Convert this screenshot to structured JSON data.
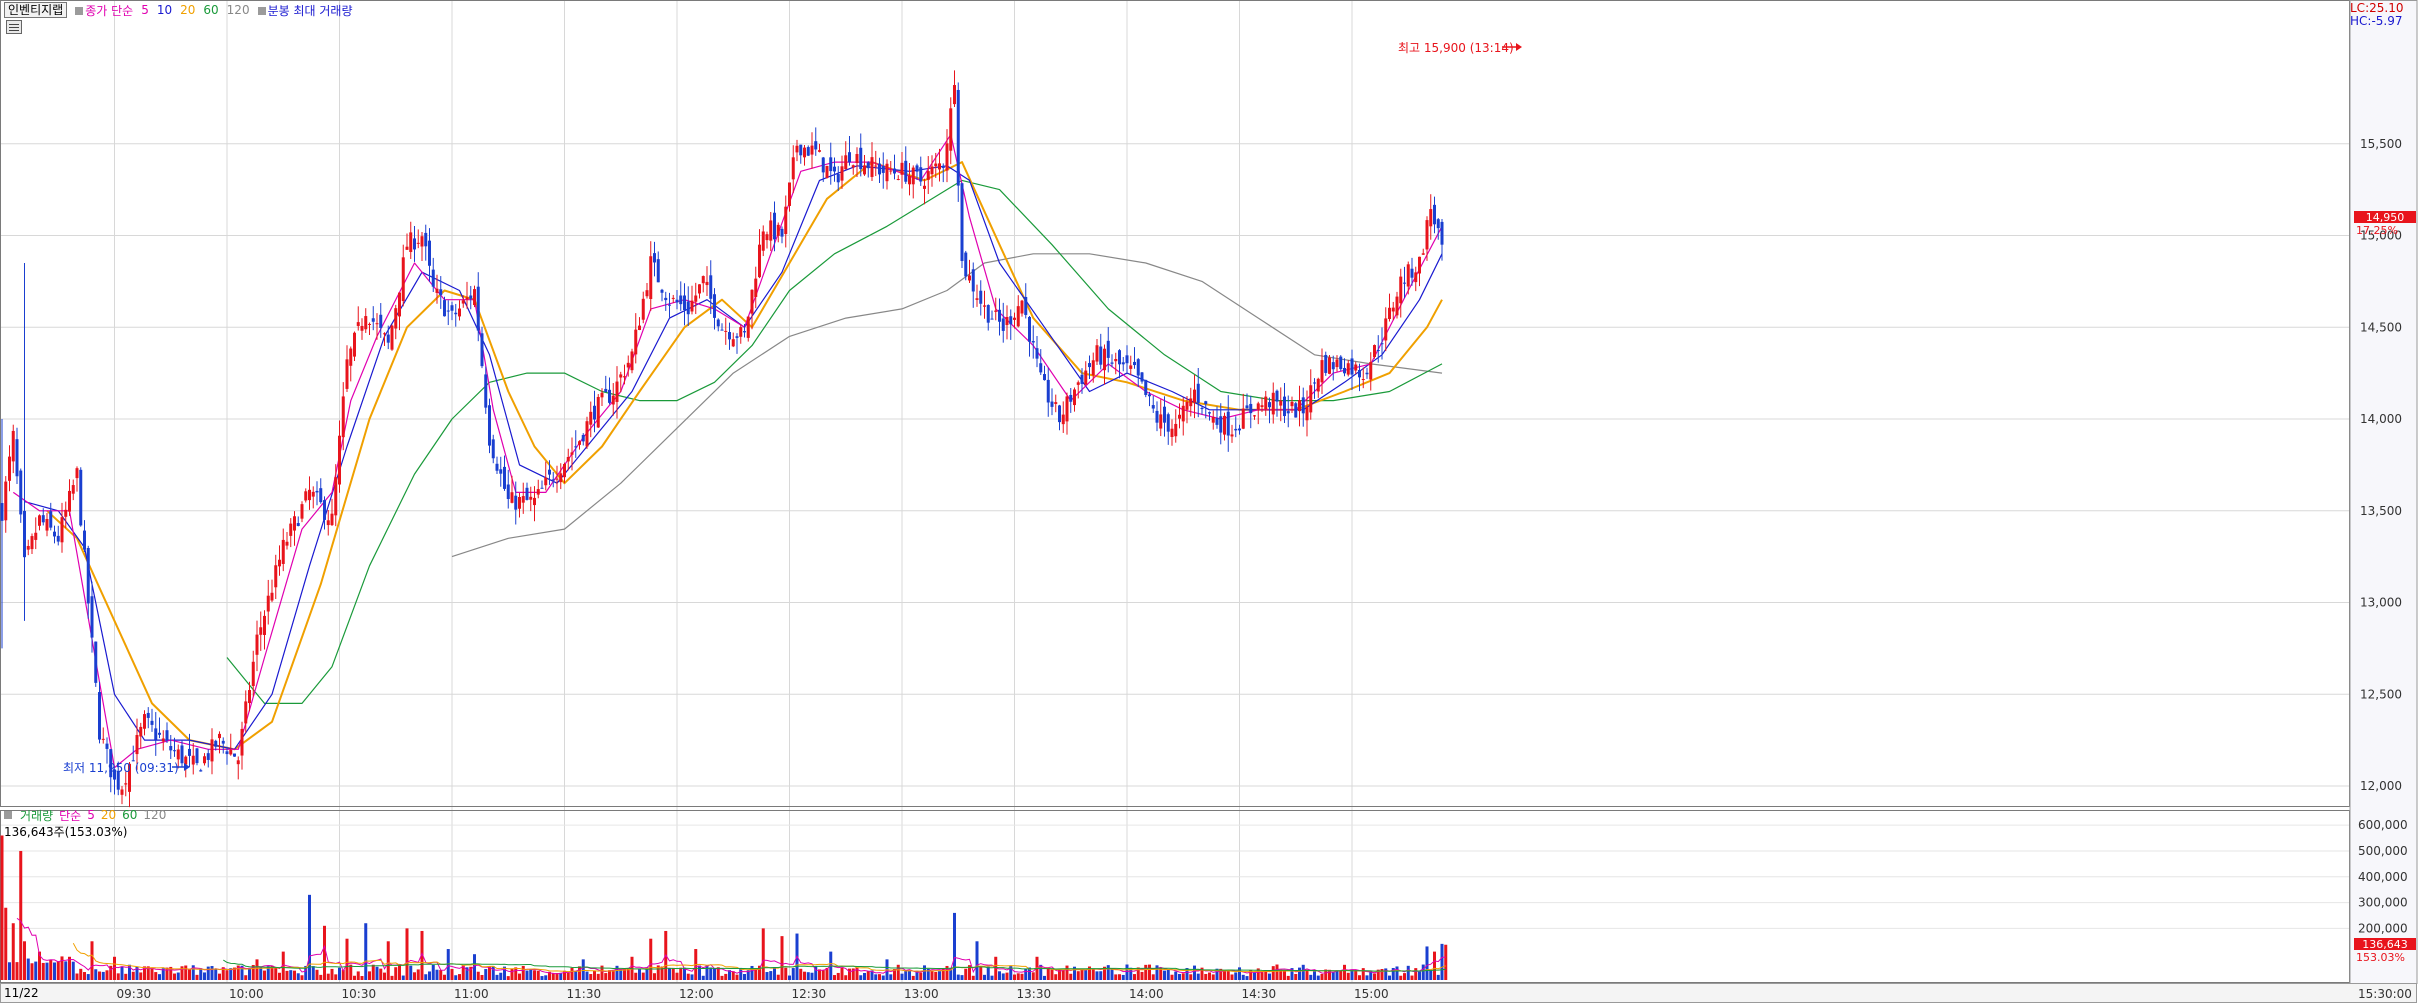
{
  "header": {
    "stock_name": "인벤티지랩",
    "close_label": "종가 단순",
    "ma_5": "5",
    "ma_10": "10",
    "ma_20": "20",
    "ma_60": "60",
    "ma_120": "120",
    "bar_label": "분봉 최대 거래량"
  },
  "right_info": {
    "lc": "LC:25.10",
    "hc": "HC:-5.97"
  },
  "price_markers": {
    "current_price": "14,950",
    "current_pct": "17.25%",
    "high_label": "최고 15,900 (13:14)",
    "low_label": "최저 11,950 (09:31)"
  },
  "volume_header": {
    "name": "거래량",
    "ma_label": "단순",
    "ma_5": "5",
    "ma_20": "20",
    "ma_60": "60",
    "ma_120": "120",
    "current_value": "136,643주(153.03%)"
  },
  "volume_markers": {
    "current_volume": "136,643",
    "current_pct": "153.03%"
  },
  "date_label": "11/22",
  "colors": {
    "up": "#e8141c",
    "down": "#1a3fd0",
    "ma5": "#e000b0",
    "ma10": "#1a1ad0",
    "ma20": "#f0a000",
    "ma60": "#1a9a3a",
    "ma120": "#888888",
    "grid": "#d8d8d8"
  },
  "chart_data": [
    {
      "type": "candlestick",
      "title": "",
      "ylim": [
        11850,
        16100
      ],
      "y_ticks": [
        "15,500",
        "15,000",
        "14,500",
        "14,000",
        "13,500",
        "13,000",
        "12,500",
        "12,000"
      ],
      "y_tick_values": [
        15500,
        15000,
        14500,
        14000,
        13500,
        13000,
        12500,
        12000
      ],
      "x_ticks": [
        "09:30",
        "10:00",
        "10:30",
        "11:00",
        "11:30",
        "12:00",
        "12:30",
        "13:00",
        "13:30",
        "14:00",
        "14:30",
        "15:00",
        "15:30:00"
      ],
      "x_tick_times": [
        30,
        60,
        90,
        120,
        150,
        180,
        210,
        240,
        270,
        300,
        330,
        360,
        390
      ],
      "xlim_minutes": [
        0,
        390
      ],
      "high": {
        "time": 254,
        "price": 15900
      },
      "low": {
        "time": 31,
        "price": 11950
      },
      "last_price": 14950,
      "anchors": [
        [
          0,
          13500
        ],
        [
          3,
          13900
        ],
        [
          6,
          13200
        ],
        [
          10,
          13450
        ],
        [
          15,
          13350
        ],
        [
          20,
          13700
        ],
        [
          26,
          12300
        ],
        [
          31,
          11950
        ],
        [
          38,
          12350
        ],
        [
          45,
          12200
        ],
        [
          52,
          12100
        ],
        [
          58,
          12250
        ],
        [
          63,
          12150
        ],
        [
          68,
          12800
        ],
        [
          75,
          13300
        ],
        [
          82,
          13600
        ],
        [
          88,
          13450
        ],
        [
          92,
          14300
        ],
        [
          97,
          14600
        ],
        [
          103,
          14400
        ],
        [
          108,
          14950
        ],
        [
          112,
          15000
        ],
        [
          115,
          14700
        ],
        [
          120,
          14550
        ],
        [
          126,
          14700
        ],
        [
          130,
          13900
        ],
        [
          135,
          13550
        ],
        [
          142,
          13550
        ],
        [
          147,
          13700
        ],
        [
          153,
          13850
        ],
        [
          158,
          14050
        ],
        [
          163,
          14150
        ],
        [
          168,
          14350
        ],
        [
          173,
          14850
        ],
        [
          178,
          14650
        ],
        [
          183,
          14600
        ],
        [
          187,
          14750
        ],
        [
          192,
          14500
        ],
        [
          198,
          14450
        ],
        [
          203,
          15050
        ],
        [
          208,
          15000
        ],
        [
          212,
          15500
        ],
        [
          217,
          15450
        ],
        [
          222,
          15300
        ],
        [
          226,
          15450
        ],
        [
          230,
          15400
        ],
        [
          235,
          15350
        ],
        [
          240,
          15350
        ],
        [
          245,
          15300
        ],
        [
          251,
          15400
        ],
        [
          254,
          15800
        ],
        [
          256,
          14850
        ],
        [
          262,
          14600
        ],
        [
          267,
          14500
        ],
        [
          272,
          14650
        ],
        [
          277,
          14200
        ],
        [
          282,
          14000
        ],
        [
          287,
          14200
        ],
        [
          292,
          14350
        ],
        [
          297,
          14300
        ],
        [
          302,
          14250
        ],
        [
          308,
          14000
        ],
        [
          313,
          13950
        ],
        [
          318,
          14150
        ],
        [
          323,
          14000
        ],
        [
          328,
          13950
        ],
        [
          333,
          14050
        ],
        [
          338,
          14100
        ],
        [
          343,
          14050
        ],
        [
          347,
          14050
        ],
        [
          352,
          14300
        ],
        [
          358,
          14300
        ],
        [
          363,
          14250
        ],
        [
          368,
          14450
        ],
        [
          373,
          14750
        ],
        [
          378,
          14850
        ],
        [
          381,
          15150
        ],
        [
          384,
          14950
        ]
      ],
      "ma5": [
        [
          3,
          13600
        ],
        [
          10,
          13500
        ],
        [
          18,
          13500
        ],
        [
          24,
          12800
        ],
        [
          30,
          12100
        ],
        [
          36,
          12200
        ],
        [
          45,
          12250
        ],
        [
          55,
          12200
        ],
        [
          63,
          12200
        ],
        [
          70,
          12700
        ],
        [
          80,
          13400
        ],
        [
          88,
          13600
        ],
        [
          93,
          14100
        ],
        [
          100,
          14450
        ],
        [
          110,
          14850
        ],
        [
          118,
          14650
        ],
        [
          126,
          14650
        ],
        [
          131,
          14050
        ],
        [
          137,
          13600
        ],
        [
          145,
          13600
        ],
        [
          155,
          13900
        ],
        [
          165,
          14150
        ],
        [
          173,
          14600
        ],
        [
          182,
          14650
        ],
        [
          190,
          14600
        ],
        [
          198,
          14500
        ],
        [
          205,
          14900
        ],
        [
          213,
          15350
        ],
        [
          222,
          15400
        ],
        [
          232,
          15400
        ],
        [
          245,
          15300
        ],
        [
          253,
          15550
        ],
        [
          258,
          15100
        ],
        [
          265,
          14600
        ],
        [
          275,
          14400
        ],
        [
          285,
          14100
        ],
        [
          295,
          14300
        ],
        [
          305,
          14150
        ],
        [
          315,
          14050
        ],
        [
          325,
          14000
        ],
        [
          335,
          14050
        ],
        [
          345,
          14050
        ],
        [
          355,
          14250
        ],
        [
          365,
          14300
        ],
        [
          375,
          14700
        ],
        [
          384,
          15050
        ]
      ],
      "ma10": [
        [
          6,
          13550
        ],
        [
          15,
          13500
        ],
        [
          22,
          13300
        ],
        [
          30,
          12500
        ],
        [
          38,
          12250
        ],
        [
          50,
          12250
        ],
        [
          62,
          12200
        ],
        [
          72,
          12500
        ],
        [
          82,
          13200
        ],
        [
          92,
          13850
        ],
        [
          102,
          14450
        ],
        [
          112,
          14800
        ],
        [
          122,
          14700
        ],
        [
          130,
          14350
        ],
        [
          138,
          13750
        ],
        [
          148,
          13650
        ],
        [
          158,
          13900
        ],
        [
          168,
          14150
        ],
        [
          178,
          14550
        ],
        [
          188,
          14650
        ],
        [
          198,
          14500
        ],
        [
          208,
          14800
        ],
        [
          218,
          15300
        ],
        [
          228,
          15380
        ],
        [
          242,
          15350
        ],
        [
          252,
          15380
        ],
        [
          258,
          15300
        ],
        [
          266,
          14850
        ],
        [
          278,
          14500
        ],
        [
          290,
          14150
        ],
        [
          300,
          14250
        ],
        [
          312,
          14150
        ],
        [
          322,
          14050
        ],
        [
          335,
          14050
        ],
        [
          347,
          14050
        ],
        [
          358,
          14200
        ],
        [
          368,
          14350
        ],
        [
          378,
          14650
        ],
        [
          384,
          14900
        ]
      ],
      "ma20": [
        [
          12,
          13500
        ],
        [
          20,
          13350
        ],
        [
          30,
          12900
        ],
        [
          40,
          12450
        ],
        [
          50,
          12250
        ],
        [
          62,
          12200
        ],
        [
          72,
          12350
        ],
        [
          85,
          13100
        ],
        [
          98,
          14000
        ],
        [
          108,
          14500
        ],
        [
          118,
          14700
        ],
        [
          126,
          14650
        ],
        [
          135,
          14150
        ],
        [
          142,
          13850
        ],
        [
          150,
          13650
        ],
        [
          160,
          13850
        ],
        [
          170,
          14150
        ],
        [
          182,
          14500
        ],
        [
          192,
          14650
        ],
        [
          200,
          14500
        ],
        [
          210,
          14850
        ],
        [
          220,
          15200
        ],
        [
          232,
          15400
        ],
        [
          246,
          15300
        ],
        [
          256,
          15400
        ],
        [
          266,
          14950
        ],
        [
          275,
          14550
        ],
        [
          288,
          14250
        ],
        [
          300,
          14200
        ],
        [
          315,
          14100
        ],
        [
          330,
          14050
        ],
        [
          345,
          14050
        ],
        [
          358,
          14150
        ],
        [
          370,
          14250
        ],
        [
          380,
          14500
        ],
        [
          384,
          14650
        ]
      ],
      "ma60": [
        [
          60,
          12700
        ],
        [
          70,
          12450
        ],
        [
          80,
          12450
        ],
        [
          88,
          12650
        ],
        [
          98,
          13200
        ],
        [
          110,
          13700
        ],
        [
          120,
          14000
        ],
        [
          130,
          14200
        ],
        [
          140,
          14250
        ],
        [
          150,
          14250
        ],
        [
          160,
          14150
        ],
        [
          170,
          14100
        ],
        [
          180,
          14100
        ],
        [
          190,
          14200
        ],
        [
          200,
          14400
        ],
        [
          210,
          14700
        ],
        [
          222,
          14900
        ],
        [
          236,
          15050
        ],
        [
          248,
          15200
        ],
        [
          256,
          15300
        ],
        [
          266,
          15250
        ],
        [
          280,
          14950
        ],
        [
          295,
          14600
        ],
        [
          310,
          14350
        ],
        [
          325,
          14150
        ],
        [
          340,
          14100
        ],
        [
          355,
          14100
        ],
        [
          370,
          14150
        ],
        [
          384,
          14300
        ]
      ],
      "ma120": [
        [
          120,
          13250
        ],
        [
          135,
          13350
        ],
        [
          150,
          13400
        ],
        [
          165,
          13650
        ],
        [
          180,
          13950
        ],
        [
          195,
          14250
        ],
        [
          210,
          14450
        ],
        [
          225,
          14550
        ],
        [
          240,
          14600
        ],
        [
          252,
          14700
        ],
        [
          262,
          14850
        ],
        [
          275,
          14900
        ],
        [
          290,
          14900
        ],
        [
          305,
          14850
        ],
        [
          320,
          14750
        ],
        [
          335,
          14550
        ],
        [
          350,
          14350
        ],
        [
          365,
          14300
        ],
        [
          384,
          14250
        ]
      ]
    },
    {
      "type": "bar",
      "title": "",
      "ylim": [
        0,
        620000
      ],
      "y_ticks": [
        "600,000",
        "500,000",
        "400,000",
        "300,000",
        "200,000"
      ],
      "y_tick_values": [
        600000,
        500000,
        400000,
        300000,
        200000
      ],
      "last_value": 136643,
      "spikes": [
        [
          0,
          560000
        ],
        [
          1,
          280000
        ],
        [
          3,
          220000
        ],
        [
          5,
          500000
        ],
        [
          6,
          150000
        ],
        [
          10,
          110000
        ],
        [
          18,
          90000
        ],
        [
          24,
          150000
        ],
        [
          30,
          90000
        ],
        [
          68,
          80000
        ],
        [
          75,
          110000
        ],
        [
          82,
          330000
        ],
        [
          86,
          210000
        ],
        [
          92,
          160000
        ],
        [
          97,
          220000
        ],
        [
          103,
          150000
        ],
        [
          108,
          200000
        ],
        [
          112,
          190000
        ],
        [
          119,
          120000
        ],
        [
          126,
          100000
        ],
        [
          155,
          80000
        ],
        [
          168,
          90000
        ],
        [
          173,
          160000
        ],
        [
          177,
          190000
        ],
        [
          185,
          120000
        ],
        [
          203,
          200000
        ],
        [
          208,
          170000
        ],
        [
          212,
          180000
        ],
        [
          221,
          110000
        ],
        [
          236,
          80000
        ],
        [
          254,
          260000
        ],
        [
          260,
          150000
        ],
        [
          265,
          90000
        ],
        [
          276,
          90000
        ],
        [
          300,
          60000
        ],
        [
          340,
          60000
        ],
        [
          380,
          130000
        ],
        [
          382,
          110000
        ],
        [
          384,
          140000
        ],
        [
          385,
          160000
        ]
      ]
    }
  ]
}
